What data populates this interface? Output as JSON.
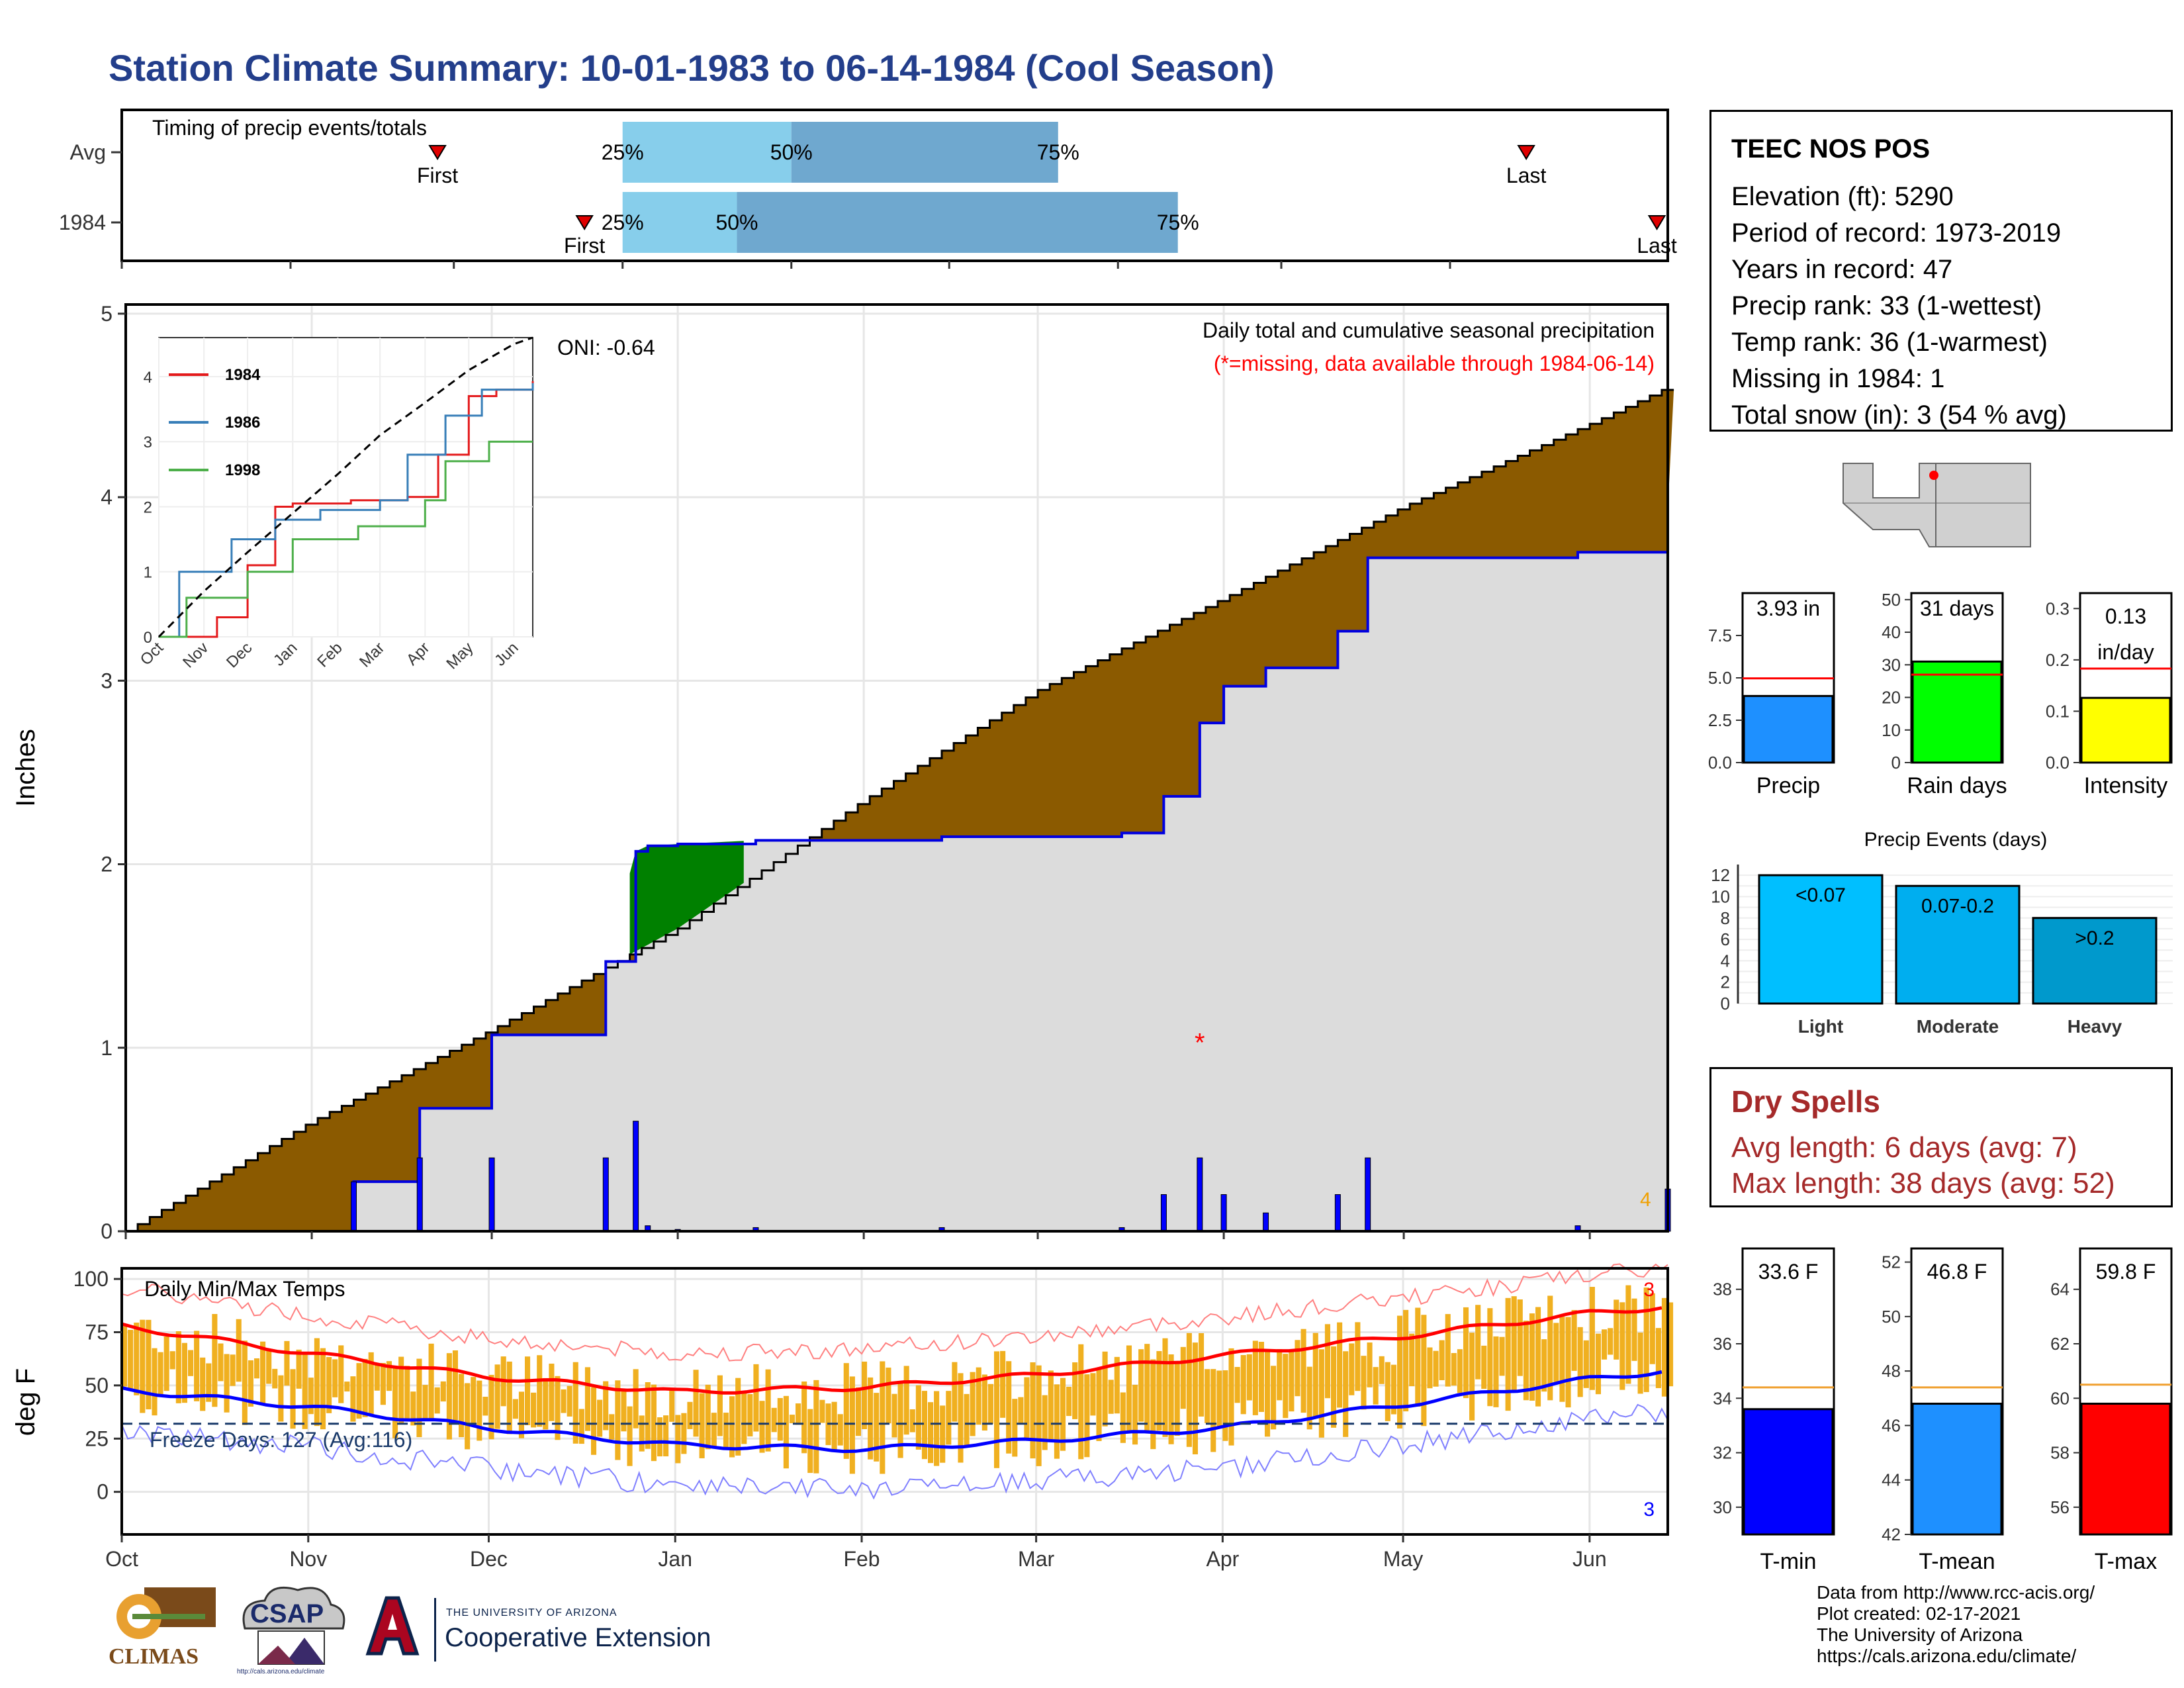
{
  "title": "Station Climate Summary: 10-01-1983 to 06-14-1984 (Cool Season)",
  "timing": {
    "label": "Timing of precip events/totals",
    "rows": [
      {
        "name": "Avg",
        "first": "1983-11-28",
        "p25": "1984-01-01",
        "p50": "1984-02-01",
        "p75": "1984-03-21",
        "last": "1984-06-15"
      },
      {
        "name": "1984",
        "first": "1983-12-25",
        "p25": "1984-01-01",
        "p50": "1984-01-22",
        "p75": "1984-04-12",
        "last": "1984-07-09"
      }
    ],
    "first_label": "First",
    "last_label": "Last",
    "p25_label": "25%",
    "p50_label": "50%",
    "p75_label": "75%"
  },
  "precip_chart": {
    "ylabel": "Inches",
    "annotation": "Daily total and cumulative seasonal precipitation",
    "missing_note": "(*=missing, data available through 1984-06-14)",
    "oni": "ONI: -0.64",
    "missing_count": "4",
    "y_ticks": [
      "0",
      "1",
      "2",
      "3",
      "4",
      "5"
    ],
    "x_ticks": [
      "Oct",
      "Nov",
      "Dec",
      "Jan",
      "Feb",
      "Mar",
      "Apr",
      "May",
      "Jun"
    ]
  },
  "inset": {
    "y_ticks": [
      "0",
      "1",
      "2",
      "3",
      "4"
    ],
    "x_ticks": [
      "Oct",
      "Nov",
      "Dec",
      "Jan",
      "Feb",
      "Mar",
      "Apr",
      "May",
      "Jun"
    ],
    "legend": [
      "1984",
      "1986",
      "1998"
    ]
  },
  "temp_chart": {
    "ylabel": "deg F",
    "label": "Daily Min/Max Temps",
    "freeze": "Freeze Days: 127 (Avg:116)",
    "max_record_count": "3",
    "min_record_count": "3",
    "y_ticks": [
      "0",
      "25",
      "50",
      "75",
      "100"
    ],
    "x_ticks": [
      "Oct",
      "Nov",
      "Dec",
      "Jan",
      "Feb",
      "Mar",
      "Apr",
      "May",
      "Jun"
    ]
  },
  "station": {
    "name": "TEEC NOS POS",
    "lines": [
      "Elevation (ft): 5290",
      "Period of record: 1973-2019",
      "Years in record: 47",
      "Precip rank: 33 (1-wettest)",
      "Temp rank: 36 (1-warmest)",
      "Missing in 1984: 1",
      "Total snow (in): 3 (54 % avg)"
    ]
  },
  "mini_bars": [
    {
      "label": "Precip",
      "value_text": "3.93 in",
      "value": 3.93,
      "avg": 4.97,
      "ymax": 10,
      "ticks": [
        "0.0",
        "2.5",
        "5.0",
        "7.5"
      ],
      "tick_vals": [
        0,
        2.5,
        5,
        7.5
      ],
      "color": "#1E90FF"
    },
    {
      "label": "Rain days",
      "value_text": "31 days",
      "value": 31,
      "avg": 27,
      "ymax": 52,
      "ticks": [
        "0",
        "10",
        "20",
        "30",
        "40",
        "50"
      ],
      "tick_vals": [
        0,
        10,
        20,
        30,
        40,
        50
      ],
      "color": "#00FF00"
    },
    {
      "label": "Intensity",
      "value_text": "0.13 in/day",
      "value": 0.126,
      "avg": 0.183,
      "ymax": 0.33,
      "ticks": [
        "0.0",
        "0.1",
        "0.2",
        "0.3"
      ],
      "tick_vals": [
        0,
        0.1,
        0.2,
        0.3
      ],
      "color": "#FFFF00"
    }
  ],
  "events": {
    "title": "Precip Events (days)",
    "bars": [
      {
        "label": "Light",
        "range": "<0.07",
        "value": 12,
        "color": "#00BFFF"
      },
      {
        "label": "Moderate",
        "range": "0.07-0.2",
        "value": 11,
        "color": "#00AEEF"
      },
      {
        "label": "Heavy",
        "range": ">0.2",
        "value": 8,
        "color": "#0099CC"
      }
    ],
    "ticks": [
      "0",
      "2",
      "4",
      "6",
      "8",
      "10",
      "12"
    ]
  },
  "dry_spells": {
    "title": "Dry Spells",
    "avg_length": "Avg length: 6 days (avg: 7)",
    "max_length": "Max length: 38 days (avg: 52)"
  },
  "temp_bars": [
    {
      "label": "T-min",
      "value_text": "33.6 F",
      "value": 33.6,
      "avg": 34.4,
      "ymin": 29,
      "ymax": 39.5,
      "ticks": [
        "30",
        "32",
        "34",
        "36",
        "38"
      ],
      "tick_vals": [
        30,
        32,
        34,
        36,
        38
      ],
      "color": "#0000FF"
    },
    {
      "label": "T-mean",
      "value_text": "46.8 F",
      "value": 46.8,
      "avg": 47.4,
      "ymin": 42,
      "ymax": 52.5,
      "ticks": [
        "42",
        "44",
        "46",
        "48",
        "50",
        "52"
      ],
      "tick_vals": [
        42,
        44,
        46,
        48,
        50,
        52
      ],
      "color": "#1E90FF"
    },
    {
      "label": "T-max",
      "value_text": "59.8 F",
      "value": 59.8,
      "avg": 60.5,
      "ymin": 55,
      "ymax": 65.5,
      "ticks": [
        "56",
        "58",
        "60",
        "62",
        "64"
      ],
      "tick_vals": [
        56,
        58,
        60,
        62,
        64
      ],
      "color": "#FF0000"
    }
  ],
  "footer": [
    "Data from http://www.rcc-acis.org/",
    "Plot created: 02-17-2021",
    "The University of Arizona",
    "https://cals.arizona.edu/climate/"
  ],
  "logos": {
    "climas": "CLIMAS",
    "csap": "CSAP",
    "csap_url": "http://cals.arizona.edu/climate",
    "ua_line1": "THE UNIVERSITY OF ARIZONA",
    "ua_line2": "Cooperative Extension"
  },
  "colors": {
    "title": "#233E8B",
    "dry_below_avg": "#8B5A00",
    "wet_above_avg": "#008000",
    "daily_precip": "#0000FF",
    "temp_bars": "#F0B020",
    "tmax_line": "#FF0000",
    "tmin_line": "#0000FF"
  },
  "chart_data": [
    {
      "type": "area",
      "title": "Daily total and cumulative seasonal precipitation",
      "ylabel": "Inches",
      "ylim": [
        0,
        5
      ],
      "series": [
        {
          "name": "",
          "x": [
            "1983-10-01",
            "1983-11-08",
            "1983-11-19",
            "1983-12-01",
            "1983-12-20",
            "1983-12-25",
            "1983-12-27",
            "1984-01-01",
            "1984-01-14",
            "1984-02-14",
            "1984-03-15",
            "1984-03-22",
            "1984-03-28",
            "1984-04-01",
            "1984-04-08",
            "1984-04-20",
            "1984-04-25",
            "1984-05-30",
            "1984-06-14"
          ],
          "values": [
            0,
            0.27,
            0.67,
            1.07,
            1.47,
            2.07,
            2.1,
            2.11,
            2.13,
            2.15,
            2.17,
            2.37,
            2.77,
            2.97,
            3.07,
            3.27,
            3.67,
            3.7,
            3.93
          ]
        },
        {
          "name": "",
          "x": [
            "1983-10-01",
            "1983-11-01",
            "1983-12-01",
            "1984-01-01",
            "1984-02-01",
            "1984-03-01",
            "1984-04-01",
            "1984-05-01",
            "1984-06-01",
            "1984-06-14"
          ],
          "values": [
            0,
            0.6,
            1.1,
            1.65,
            2.35,
            2.95,
            3.45,
            3.95,
            4.4,
            4.6
          ]
        }
      ],
      "missing_days": 4
    },
    {
      "type": "line",
      "title": "",
      "ylim": [
        0,
        4.6
      ],
      "series": [
        {
          "name": "1984",
          "x": [
            "1983-10-01",
            "1983-11-10",
            "1983-12-01",
            "1983-12-20",
            "1984-01-01",
            "1984-02-10",
            "1984-03-20",
            "1984-04-10",
            "1984-05-01",
            "1984-05-20",
            "1984-06-14"
          ],
          "values": [
            0,
            0.3,
            1.1,
            2.0,
            2.05,
            2.1,
            2.15,
            2.8,
            3.7,
            3.8,
            3.93
          ]
        },
        {
          "name": "1986",
          "x": [
            "1983-10-01",
            "1983-10-15",
            "1983-11-20",
            "1983-12-20",
            "1984-01-20",
            "1984-03-01",
            "1984-03-20",
            "1984-04-15",
            "1984-05-10",
            "1984-06-14"
          ],
          "values": [
            0,
            1.0,
            1.5,
            1.8,
            1.95,
            2.1,
            2.8,
            3.4,
            3.8,
            3.9
          ]
        },
        {
          "name": "1998",
          "x": [
            "1983-10-01",
            "1983-10-20",
            "1983-12-01",
            "1984-01-01",
            "1984-02-15",
            "1984-04-01",
            "1984-04-15",
            "1984-05-15",
            "1984-06-14"
          ],
          "values": [
            0,
            0.6,
            1.0,
            1.5,
            1.7,
            2.1,
            2.7,
            3.0,
            3.0
          ]
        },
        {
          "name": "",
          "x": [
            "1983-10-01",
            "1983-11-01",
            "1983-12-01",
            "1984-01-01",
            "1984-02-01",
            "1984-03-01",
            "1984-04-01",
            "1984-05-01",
            "1984-06-01",
            "1984-06-14"
          ],
          "values": [
            0,
            0.7,
            1.3,
            1.9,
            2.5,
            3.1,
            3.6,
            4.1,
            4.5,
            4.6
          ]
        }
      ]
    },
    {
      "type": "line",
      "title": "Daily Min/Max Temps",
      "ylabel": "deg F",
      "ylim": [
        -20,
        105
      ],
      "series": [
        {
          "name": "",
          "x": [
            "1983-10-01",
            "1983-11-01",
            "1983-12-01",
            "1984-01-01",
            "1984-02-01",
            "1984-03-01",
            "1984-04-01",
            "1984-05-01",
            "1984-06-01",
            "1984-06-14"
          ],
          "values": [
            78,
            65,
            54,
            47,
            49,
            55,
            64,
            73,
            84,
            87
          ]
        },
        {
          "name": "",
          "x": [
            "1983-10-01",
            "1983-11-01",
            "1983-12-01",
            "1984-01-01",
            "1984-02-01",
            "1984-03-01",
            "1984-04-01",
            "1984-05-01",
            "1984-06-01",
            "1984-06-14"
          ],
          "values": [
            48,
            40,
            30,
            22,
            20,
            24,
            30,
            41,
            53,
            57
          ]
        }
      ]
    },
    {
      "type": "bar",
      "title": "Precip Events (days)",
      "categories": [
        "Light",
        "Moderate",
        "Heavy"
      ],
      "values": [
        12,
        11,
        8
      ]
    }
  ]
}
